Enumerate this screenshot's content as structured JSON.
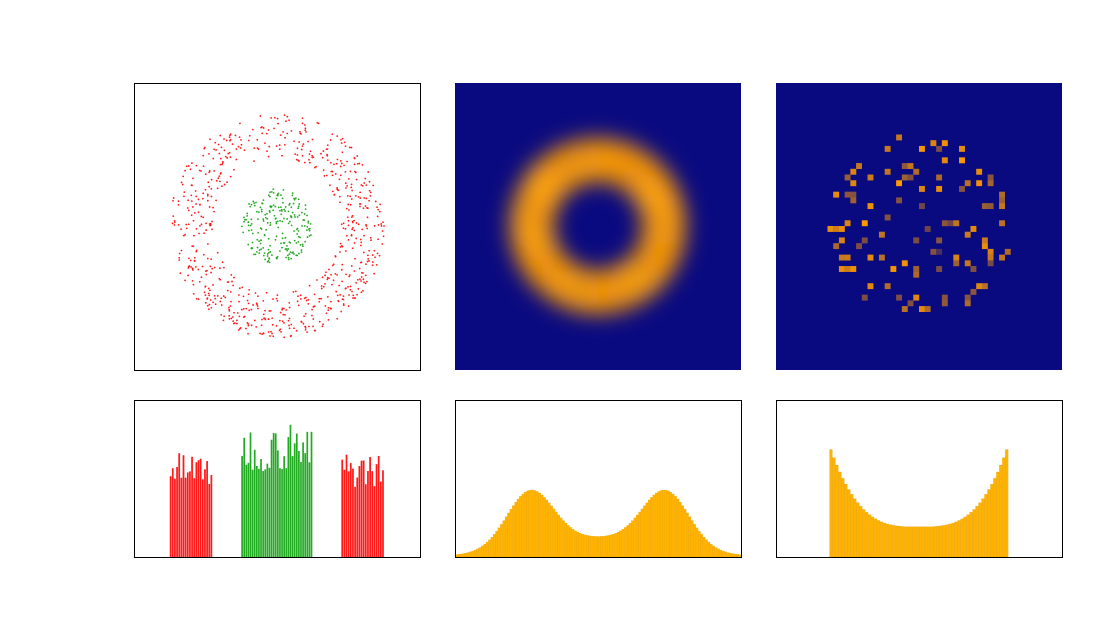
{
  "colors": {
    "outer_ring": "#ff1a1a",
    "inner_cluster": "#22aa22",
    "density_background": "#0a0a80",
    "density_peak": "#ff9a00",
    "histogram_fill": "#ffb300",
    "histogram_edge": "#e39a00"
  },
  "chart_data": [
    {
      "panel": "scatter",
      "type": "scatter",
      "grid": false,
      "axes_visible": false,
      "series": [
        {
          "color": "#ff1a1a",
          "shape": "ring",
          "center": [
            0,
            0
          ],
          "r_min": 0.72,
          "r_max": 1.2,
          "count": 700
        },
        {
          "color": "#22aa22",
          "shape": "disk",
          "center": [
            0,
            0
          ],
          "r_min": 0.0,
          "r_max": 0.4,
          "count": 220
        }
      ],
      "xlim": [
        -1.6,
        1.6
      ],
      "ylim": [
        -1.6,
        1.6
      ]
    },
    {
      "panel": "kde-density",
      "type": "heatmap",
      "colormap": "navy-to-orange",
      "shape": "ring",
      "ring_radius": 0.74,
      "ring_width": 0.22,
      "xlim": [
        -1.6,
        1.6
      ],
      "ylim": [
        -1.6,
        1.6
      ]
    },
    {
      "panel": "pixel-density",
      "type": "heatmap",
      "colormap": "navy-to-orange",
      "grid_size": 50,
      "shape": "sparse ring",
      "r_max": 1.0,
      "xlim": [
        -1.6,
        1.6
      ],
      "ylim": [
        -1.6,
        1.6
      ]
    },
    {
      "panel": "hist-by-class",
      "type": "bar",
      "series": [
        {
          "color": "#ff1a1a",
          "range": [
            -1.2,
            -0.72
          ],
          "typical": 0.58
        },
        {
          "color": "#22aa22",
          "range": [
            -0.4,
            0.4
          ],
          "typical": 0.72,
          "max": 1.0
        },
        {
          "color": "#ff1a1a",
          "range": [
            0.72,
            1.2
          ],
          "typical": 0.58
        }
      ],
      "xlim": [
        -1.6,
        1.6
      ]
    },
    {
      "panel": "kde-marginal",
      "type": "area",
      "peaks": [
        {
          "x": -0.76,
          "height": 0.75
        },
        {
          "x": 0.76,
          "height": 0.75
        }
      ],
      "valley": 0.2,
      "xlim": [
        -1.6,
        1.6
      ]
    },
    {
      "panel": "u-histogram",
      "type": "bar",
      "bins": 60,
      "range": [
        -1.0,
        1.0
      ],
      "edge_value": 1.0,
      "center_value": 0.27,
      "xlim": [
        -1.6,
        1.6
      ]
    }
  ]
}
